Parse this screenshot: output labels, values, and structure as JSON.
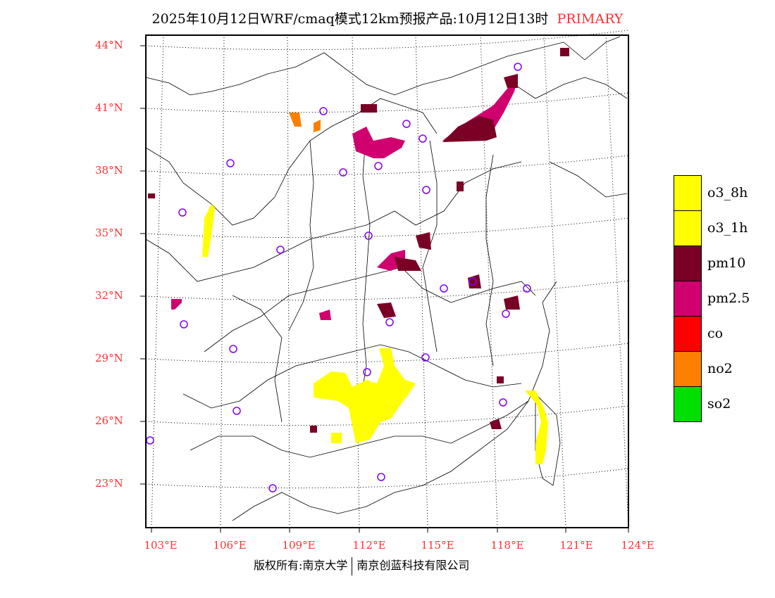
{
  "title": {
    "text": "2025年10月12日WRF/cmaq模式12km预报产品:10月12日13时",
    "tag": "PRIMARY"
  },
  "lat_labels": [
    "44°N",
    "41°N",
    "38°N",
    "35°N",
    "32°N",
    "29°N",
    "26°N",
    "23°N"
  ],
  "lon_labels": [
    "103°E",
    "106°E",
    "109°E",
    "112°E",
    "115°E",
    "118°E",
    "121°E",
    "124°E"
  ],
  "legend": [
    {
      "label": "o3_8h",
      "color": "#ffff00"
    },
    {
      "label": "o3_1h",
      "color": "#ffff00"
    },
    {
      "label": "pm10",
      "color": "#7a0026"
    },
    {
      "label": "pm2.5",
      "color": "#d0006f"
    },
    {
      "label": "co",
      "color": "#ff0000"
    },
    {
      "label": "no2",
      "color": "#ff8000"
    },
    {
      "label": "so2",
      "color": "#00e000"
    }
  ],
  "colors": {
    "station": "#8000ff",
    "axis_label": "#ff3030"
  },
  "footer": {
    "left": "版权所有:南京大学",
    "right": "南京创蓝科技有限公司"
  }
}
